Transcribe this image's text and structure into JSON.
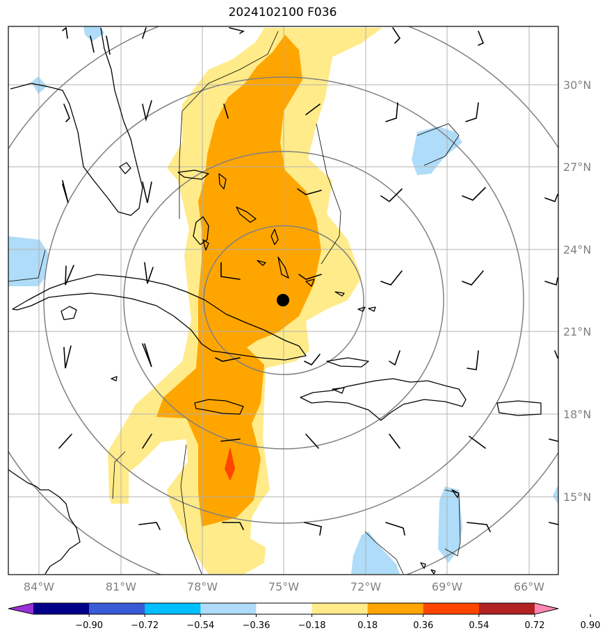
{
  "title": "2024102100 F036",
  "map": {
    "lon_labels": [
      "84°W",
      "81°W",
      "78°W",
      "75°W",
      "72°W",
      "69°W",
      "66°W"
    ],
    "lat_labels": [
      "30°N",
      "27°N",
      "24°N",
      "21°N",
      "18°N",
      "15°N"
    ],
    "center_marker": {
      "lon": -75,
      "lat": 22.2
    },
    "range_rings": 4
  },
  "colorbar": {
    "tick_labels": [
      "−0.90",
      "−0.72",
      "−0.54",
      "−0.36",
      "−0.18",
      "0.18",
      "0.36",
      "0.54",
      "0.72",
      "0.90"
    ],
    "colors": [
      "#9b30d9",
      "#00008b",
      "#3a5bd6",
      "#00bfff",
      "#afdcf8",
      "#ffffff",
      "#ffeb8a",
      "#ffa500",
      "#ff4500",
      "#b22222",
      "#ff87b4"
    ]
  },
  "colors": {
    "grid": "#b0b0b0",
    "ring": "#808080",
    "axis_label": "#808080"
  }
}
